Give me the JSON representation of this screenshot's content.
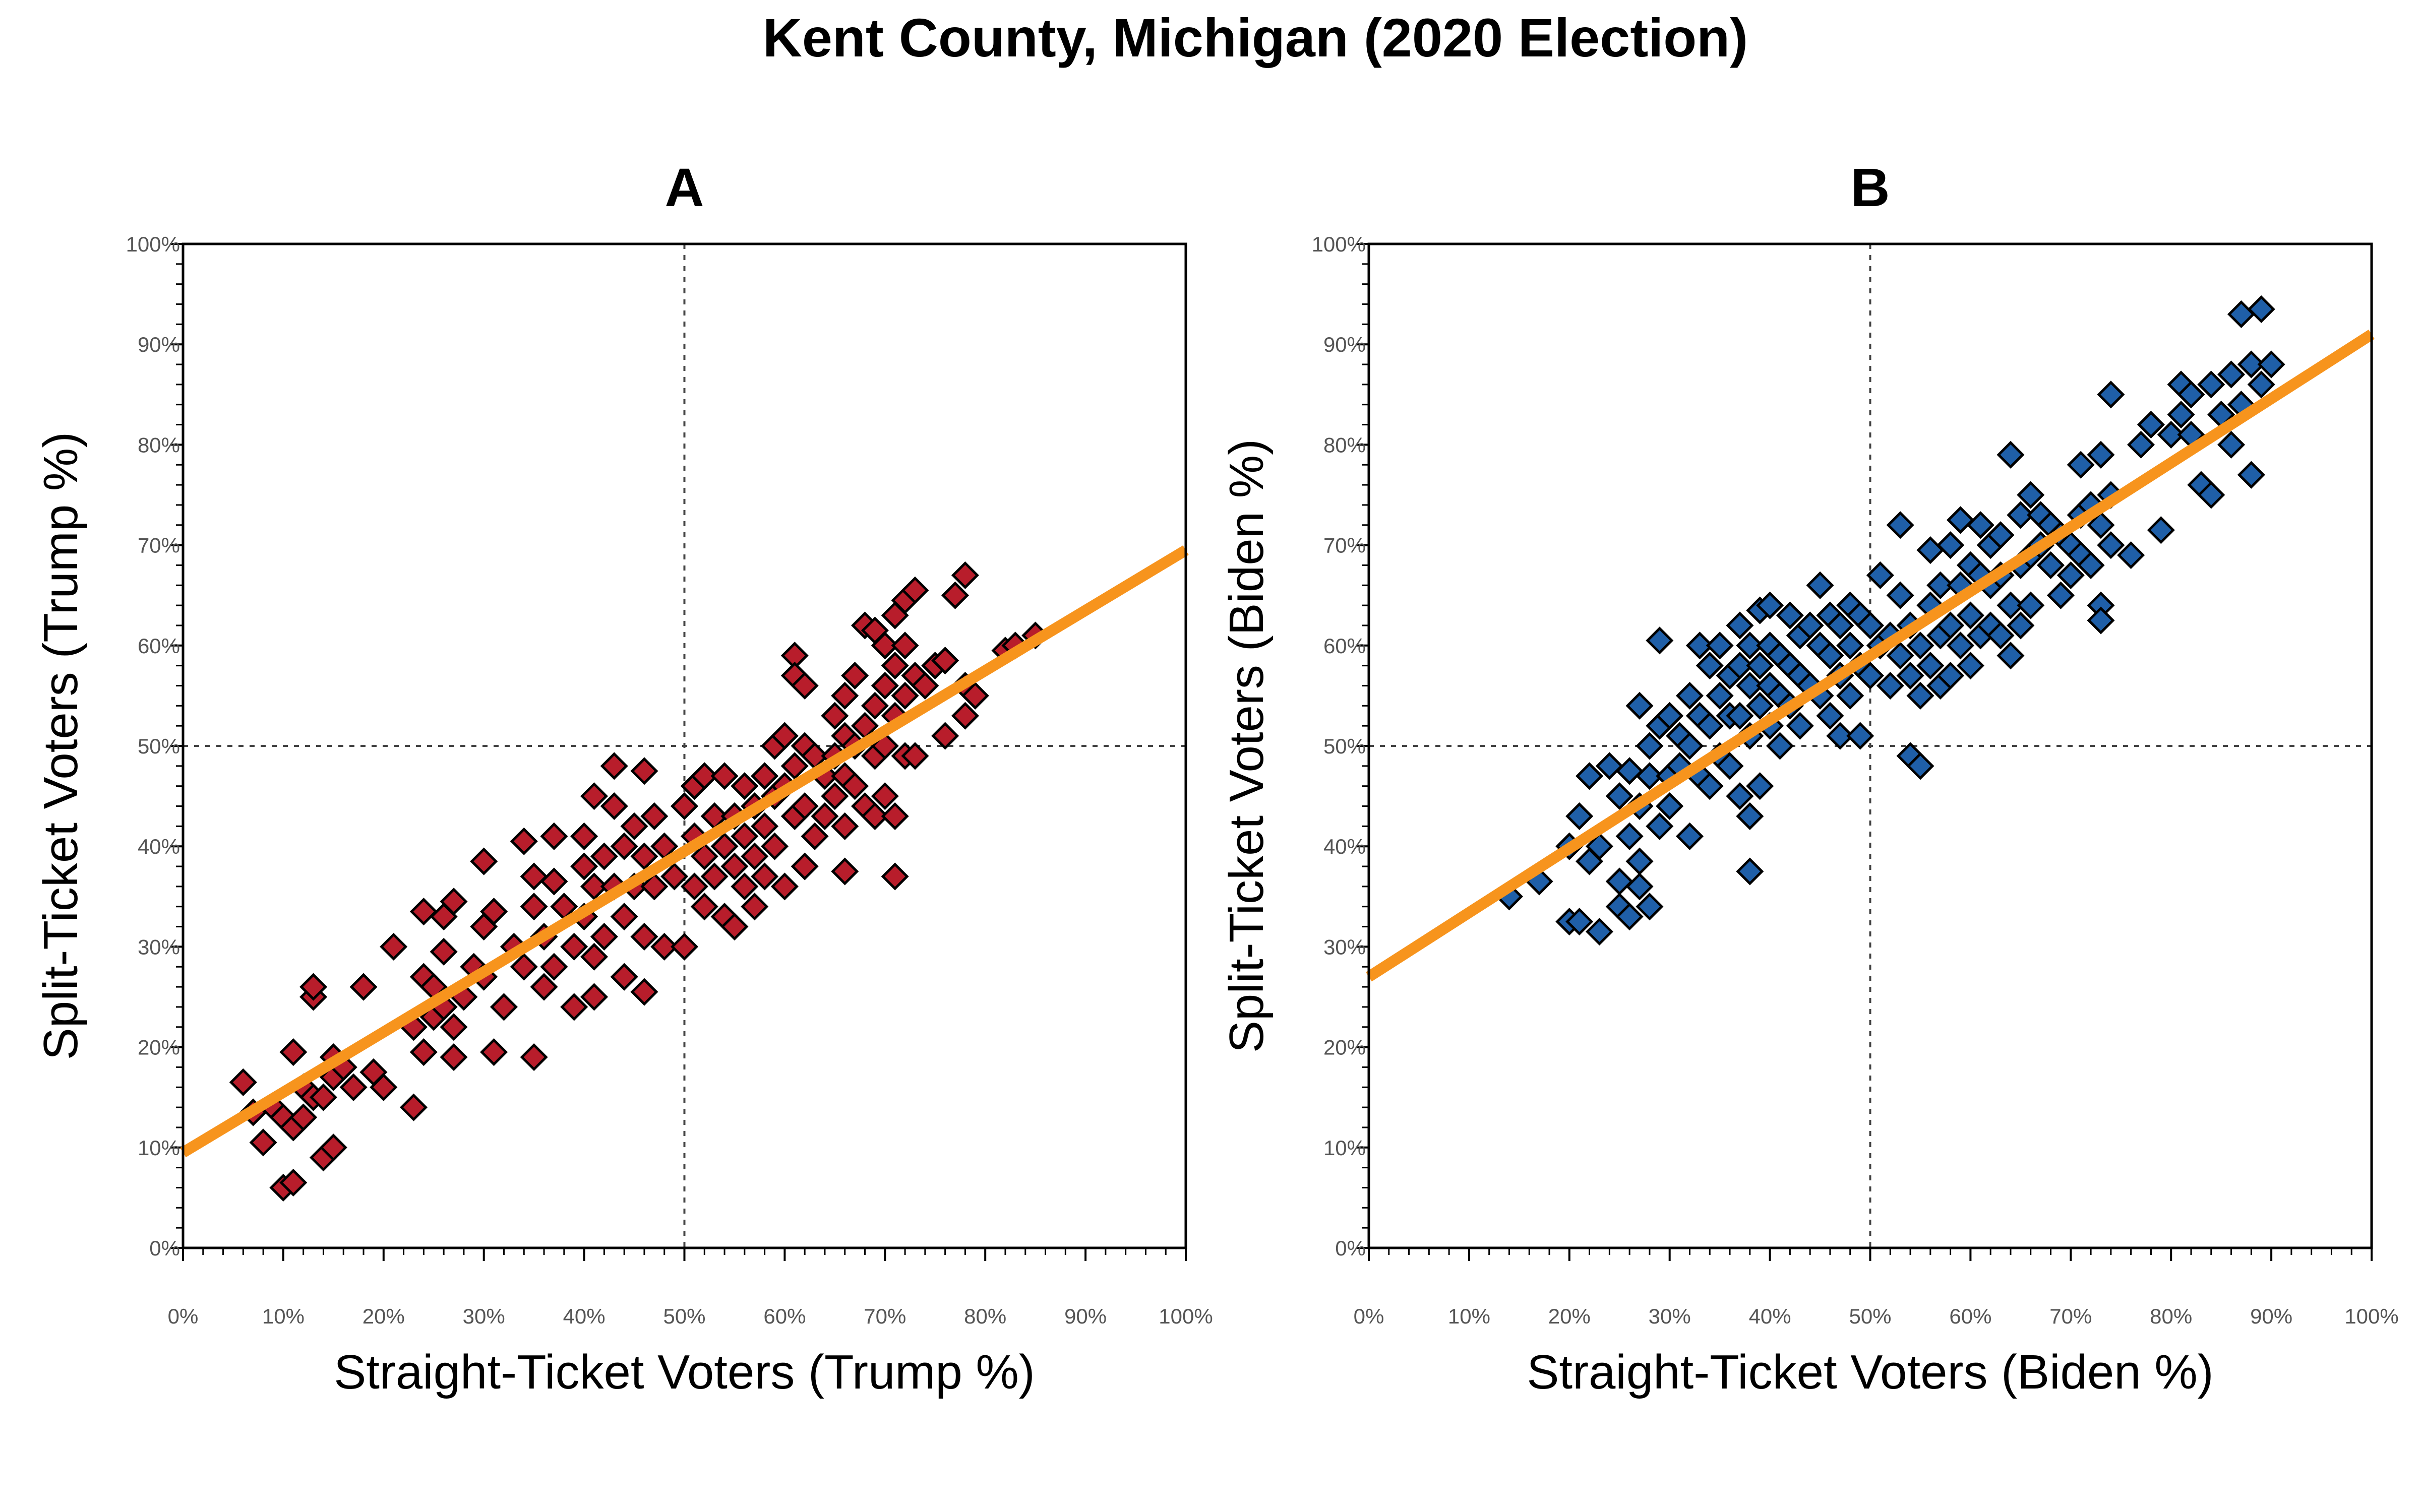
{
  "title": "Kent County, Michigan (2020 Election)",
  "chart_data": [
    {
      "type": "scatter",
      "panel": "A",
      "xlabel": "Straight-Ticket Voters (Trump %)",
      "ylabel": "Split-Ticket Voters (Trump %)",
      "xlim": [
        0,
        100
      ],
      "ylim": [
        0,
        100
      ],
      "x_ticks": [
        "0%",
        "10%",
        "20%",
        "30%",
        "40%",
        "50%",
        "60%",
        "70%",
        "80%",
        "90%",
        "100%"
      ],
      "y_ticks": [
        "0%",
        "10%",
        "20%",
        "30%",
        "40%",
        "50%",
        "60%",
        "70%",
        "80%",
        "90%",
        "100%"
      ],
      "reference_lines": {
        "x": 50,
        "y": 50
      },
      "marker": "diamond",
      "point_color": "#b81d2b",
      "trend_color": "#f7941d",
      "trendline": {
        "x": [
          0,
          100
        ],
        "y": [
          9.5,
          69.5
        ]
      },
      "points": [
        [
          6,
          16.5
        ],
        [
          7,
          13.5
        ],
        [
          8,
          10.5
        ],
        [
          9,
          14
        ],
        [
          10,
          6
        ],
        [
          10,
          13
        ],
        [
          11,
          19.5
        ],
        [
          11,
          12
        ],
        [
          11,
          6.5
        ],
        [
          12,
          16
        ],
        [
          12,
          13
        ],
        [
          13,
          25
        ],
        [
          13,
          26
        ],
        [
          13,
          15
        ],
        [
          14,
          9
        ],
        [
          14,
          15
        ],
        [
          15,
          10
        ],
        [
          15,
          19
        ],
        [
          15,
          17
        ],
        [
          16,
          18
        ],
        [
          17,
          16
        ],
        [
          18,
          26
        ],
        [
          19,
          17.5
        ],
        [
          20,
          16
        ],
        [
          21,
          30
        ],
        [
          23,
          22
        ],
        [
          23,
          14
        ],
        [
          24,
          19.5
        ],
        [
          24,
          27
        ],
        [
          24,
          33.5
        ],
        [
          25,
          23
        ],
        [
          25,
          26
        ],
        [
          26,
          24
        ],
        [
          26,
          29.5
        ],
        [
          26,
          33
        ],
        [
          27,
          34.5
        ],
        [
          27,
          22
        ],
        [
          27,
          19
        ],
        [
          28,
          25
        ],
        [
          29,
          28
        ],
        [
          30,
          38.5
        ],
        [
          30,
          32
        ],
        [
          30,
          27
        ],
        [
          31,
          33.5
        ],
        [
          31,
          19.5
        ],
        [
          32,
          24
        ],
        [
          33,
          30
        ],
        [
          34,
          40.5
        ],
        [
          34,
          28
        ],
        [
          35,
          37
        ],
        [
          35,
          34
        ],
        [
          35,
          19
        ],
        [
          36,
          26
        ],
        [
          36,
          31
        ],
        [
          37,
          36.5
        ],
        [
          37,
          41
        ],
        [
          37,
          28
        ],
        [
          38,
          34
        ],
        [
          39,
          30
        ],
        [
          39,
          24
        ],
        [
          40,
          41
        ],
        [
          40,
          38
        ],
        [
          40,
          33
        ],
        [
          41,
          45
        ],
        [
          41,
          36
        ],
        [
          41,
          29
        ],
        [
          41,
          25
        ],
        [
          42,
          39
        ],
        [
          42,
          31
        ],
        [
          43,
          48
        ],
        [
          43,
          44
        ],
        [
          43,
          36
        ],
        [
          44,
          40
        ],
        [
          44,
          33
        ],
        [
          44,
          27
        ],
        [
          45,
          42
        ],
        [
          45,
          36
        ],
        [
          46,
          47.5
        ],
        [
          46,
          39
        ],
        [
          46,
          31
        ],
        [
          46,
          25.5
        ],
        [
          47,
          43
        ],
        [
          47,
          36
        ],
        [
          48,
          40
        ],
        [
          48,
          30
        ],
        [
          49,
          37
        ],
        [
          50,
          44
        ],
        [
          50,
          30
        ],
        [
          51,
          46
        ],
        [
          51,
          41
        ],
        [
          51,
          36
        ],
        [
          52,
          47
        ],
        [
          52,
          39
        ],
        [
          52,
          34
        ],
        [
          53,
          43
        ],
        [
          53,
          37
        ],
        [
          54,
          47
        ],
        [
          54,
          40
        ],
        [
          54,
          33
        ],
        [
          55,
          43
        ],
        [
          55,
          38
        ],
        [
          55,
          32
        ],
        [
          56,
          46
        ],
        [
          56,
          41
        ],
        [
          56,
          36
        ],
        [
          57,
          44
        ],
        [
          57,
          39
        ],
        [
          57,
          34
        ],
        [
          58,
          47
        ],
        [
          58,
          42
        ],
        [
          58,
          37
        ],
        [
          59,
          50
        ],
        [
          59,
          45
        ],
        [
          59,
          40
        ],
        [
          60,
          51
        ],
        [
          60,
          46
        ],
        [
          60,
          36
        ],
        [
          61,
          48
        ],
        [
          61,
          43
        ],
        [
          61,
          59
        ],
        [
          61,
          57
        ],
        [
          62,
          56
        ],
        [
          62,
          50
        ],
        [
          62,
          44
        ],
        [
          62,
          38
        ],
        [
          63,
          49
        ],
        [
          63,
          41
        ],
        [
          64,
          47
        ],
        [
          64,
          43
        ],
        [
          65,
          53
        ],
        [
          65,
          49
        ],
        [
          65,
          45
        ],
        [
          66,
          55
        ],
        [
          66,
          51
        ],
        [
          66,
          47
        ],
        [
          66,
          42
        ],
        [
          66,
          37.5
        ],
        [
          67,
          57
        ],
        [
          67,
          50
        ],
        [
          67,
          46
        ],
        [
          68,
          62
        ],
        [
          68,
          52
        ],
        [
          68,
          44
        ],
        [
          69,
          61.5
        ],
        [
          69,
          54
        ],
        [
          69,
          49
        ],
        [
          69,
          43
        ],
        [
          70,
          60
        ],
        [
          70,
          56
        ],
        [
          70,
          50
        ],
        [
          70,
          45
        ],
        [
          71,
          37
        ],
        [
          71,
          63
        ],
        [
          71,
          58
        ],
        [
          71,
          53
        ],
        [
          71,
          43
        ],
        [
          72,
          64.5
        ],
        [
          72,
          60
        ],
        [
          72,
          55
        ],
        [
          72,
          49
        ],
        [
          73,
          65.5
        ],
        [
          73,
          57
        ],
        [
          73,
          49
        ],
        [
          74,
          56
        ],
        [
          75,
          58
        ],
        [
          76,
          51
        ],
        [
          76,
          58.5
        ],
        [
          77,
          65
        ],
        [
          78,
          67
        ],
        [
          78,
          56
        ],
        [
          78,
          53
        ],
        [
          79,
          55
        ],
        [
          82,
          59.5
        ],
        [
          83,
          60
        ],
        [
          85,
          61
        ]
      ]
    },
    {
      "type": "scatter",
      "panel": "B",
      "xlabel": "Straight-Ticket Voters (Biden %)",
      "ylabel": "Split-Ticket Voters (Biden %)",
      "xlim": [
        0,
        100
      ],
      "ylim": [
        0,
        100
      ],
      "x_ticks": [
        "0%",
        "10%",
        "20%",
        "30%",
        "40%",
        "50%",
        "60%",
        "70%",
        "80%",
        "90%",
        "100%"
      ],
      "y_ticks": [
        "0%",
        "10%",
        "20%",
        "30%",
        "40%",
        "50%",
        "60%",
        "70%",
        "80%",
        "90%",
        "100%"
      ],
      "reference_lines": {
        "x": 50,
        "y": 50
      },
      "marker": "diamond",
      "point_color": "#1f5fa8",
      "trend_color": "#f7941d",
      "trendline": {
        "x": [
          0,
          100
        ],
        "y": [
          27,
          91
        ]
      },
      "points": [
        [
          14,
          35
        ],
        [
          17,
          36.5
        ],
        [
          20,
          32.5
        ],
        [
          20,
          40
        ],
        [
          21,
          43
        ],
        [
          21,
          32.5
        ],
        [
          22,
          47
        ],
        [
          22,
          38.5
        ],
        [
          23,
          31.5
        ],
        [
          23,
          40
        ],
        [
          24,
          48
        ],
        [
          25,
          34
        ],
        [
          25,
          45
        ],
        [
          25,
          36.5
        ],
        [
          26,
          47.5
        ],
        [
          26,
          41
        ],
        [
          26,
          33
        ],
        [
          27,
          44
        ],
        [
          27,
          38.5
        ],
        [
          27,
          54
        ],
        [
          27,
          36
        ],
        [
          28,
          50
        ],
        [
          28,
          47
        ],
        [
          28,
          34
        ],
        [
          29,
          60.5
        ],
        [
          29,
          52
        ],
        [
          29,
          42
        ],
        [
          30,
          53
        ],
        [
          30,
          47
        ],
        [
          30,
          44
        ],
        [
          31,
          51
        ],
        [
          31,
          48
        ],
        [
          32,
          55
        ],
        [
          32,
          50
        ],
        [
          32,
          41
        ],
        [
          33,
          60
        ],
        [
          33,
          53
        ],
        [
          33,
          47
        ],
        [
          34,
          58
        ],
        [
          34,
          52
        ],
        [
          34,
          46
        ],
        [
          35,
          60
        ],
        [
          35,
          55
        ],
        [
          35,
          49
        ],
        [
          36,
          57
        ],
        [
          36,
          53
        ],
        [
          36,
          48
        ],
        [
          37,
          62
        ],
        [
          37,
          58
        ],
        [
          37,
          53
        ],
        [
          37,
          45
        ],
        [
          38,
          60
        ],
        [
          38,
          56
        ],
        [
          38,
          51
        ],
        [
          38,
          43
        ],
        [
          38,
          37.5
        ],
        [
          39,
          63.5
        ],
        [
          39,
          58
        ],
        [
          39,
          54
        ],
        [
          39,
          46
        ],
        [
          40,
          64
        ],
        [
          40,
          60
        ],
        [
          40,
          56
        ],
        [
          40,
          52
        ],
        [
          41,
          59
        ],
        [
          41,
          55
        ],
        [
          41,
          50
        ],
        [
          42,
          63
        ],
        [
          42,
          58
        ],
        [
          42,
          54
        ],
        [
          43,
          61
        ],
        [
          43,
          57
        ],
        [
          43,
          52
        ],
        [
          44,
          62
        ],
        [
          44,
          56
        ],
        [
          45,
          66
        ],
        [
          45,
          60
        ],
        [
          45,
          55
        ],
        [
          46,
          63
        ],
        [
          46,
          59
        ],
        [
          46,
          53
        ],
        [
          47,
          62
        ],
        [
          47,
          57
        ],
        [
          47,
          51
        ],
        [
          48,
          64
        ],
        [
          48,
          60
        ],
        [
          48,
          55
        ],
        [
          49,
          63
        ],
        [
          49,
          58
        ],
        [
          49,
          51
        ],
        [
          50,
          62
        ],
        [
          50,
          57
        ],
        [
          51,
          67
        ],
        [
          51,
          60
        ],
        [
          52,
          61
        ],
        [
          52,
          56
        ],
        [
          53,
          72
        ],
        [
          53,
          65
        ],
        [
          53,
          59
        ],
        [
          54,
          62
        ],
        [
          54,
          57
        ],
        [
          54,
          49
        ],
        [
          55,
          60
        ],
        [
          55,
          55
        ],
        [
          55,
          48
        ],
        [
          56,
          69.5
        ],
        [
          56,
          64
        ],
        [
          56,
          58
        ],
        [
          57,
          66
        ],
        [
          57,
          61
        ],
        [
          57,
          56
        ],
        [
          58,
          70
        ],
        [
          58,
          62
        ],
        [
          58,
          57
        ],
        [
          59,
          72.5
        ],
        [
          59,
          66
        ],
        [
          59,
          60
        ],
        [
          60,
          68
        ],
        [
          60,
          63
        ],
        [
          60,
          58
        ],
        [
          61,
          72
        ],
        [
          61,
          67
        ],
        [
          61,
          61
        ],
        [
          62,
          70
        ],
        [
          62,
          66
        ],
        [
          62,
          62
        ],
        [
          63,
          71
        ],
        [
          63,
          67
        ],
        [
          63,
          61
        ],
        [
          64,
          79
        ],
        [
          64,
          64
        ],
        [
          64,
          59
        ],
        [
          65,
          73
        ],
        [
          65,
          68
        ],
        [
          65,
          62
        ],
        [
          66,
          75
        ],
        [
          66,
          69
        ],
        [
          66,
          64
        ],
        [
          67,
          73
        ],
        [
          67,
          70
        ],
        [
          68,
          72
        ],
        [
          68,
          68
        ],
        [
          69,
          71
        ],
        [
          69,
          65
        ],
        [
          70,
          70
        ],
        [
          70,
          67
        ],
        [
          71,
          78
        ],
        [
          71,
          73
        ],
        [
          71,
          69
        ],
        [
          72,
          74
        ],
        [
          72,
          68
        ],
        [
          73,
          79
        ],
        [
          73,
          72
        ],
        [
          73,
          64
        ],
        [
          73,
          62.5
        ],
        [
          74,
          85
        ],
        [
          74,
          75
        ],
        [
          74,
          70
        ],
        [
          76,
          69
        ],
        [
          77,
          80
        ],
        [
          78,
          82
        ],
        [
          79,
          71.5
        ],
        [
          80,
          81
        ],
        [
          81,
          86
        ],
        [
          81,
          83
        ],
        [
          82,
          85
        ],
        [
          82,
          81
        ],
        [
          83,
          76
        ],
        [
          84,
          86
        ],
        [
          84,
          75
        ],
        [
          85,
          83
        ],
        [
          86,
          87
        ],
        [
          86,
          80
        ],
        [
          87,
          93
        ],
        [
          87,
          84
        ],
        [
          88,
          88
        ],
        [
          88,
          77
        ],
        [
          89,
          86
        ],
        [
          89,
          93.5
        ],
        [
          90,
          88
        ]
      ]
    }
  ]
}
